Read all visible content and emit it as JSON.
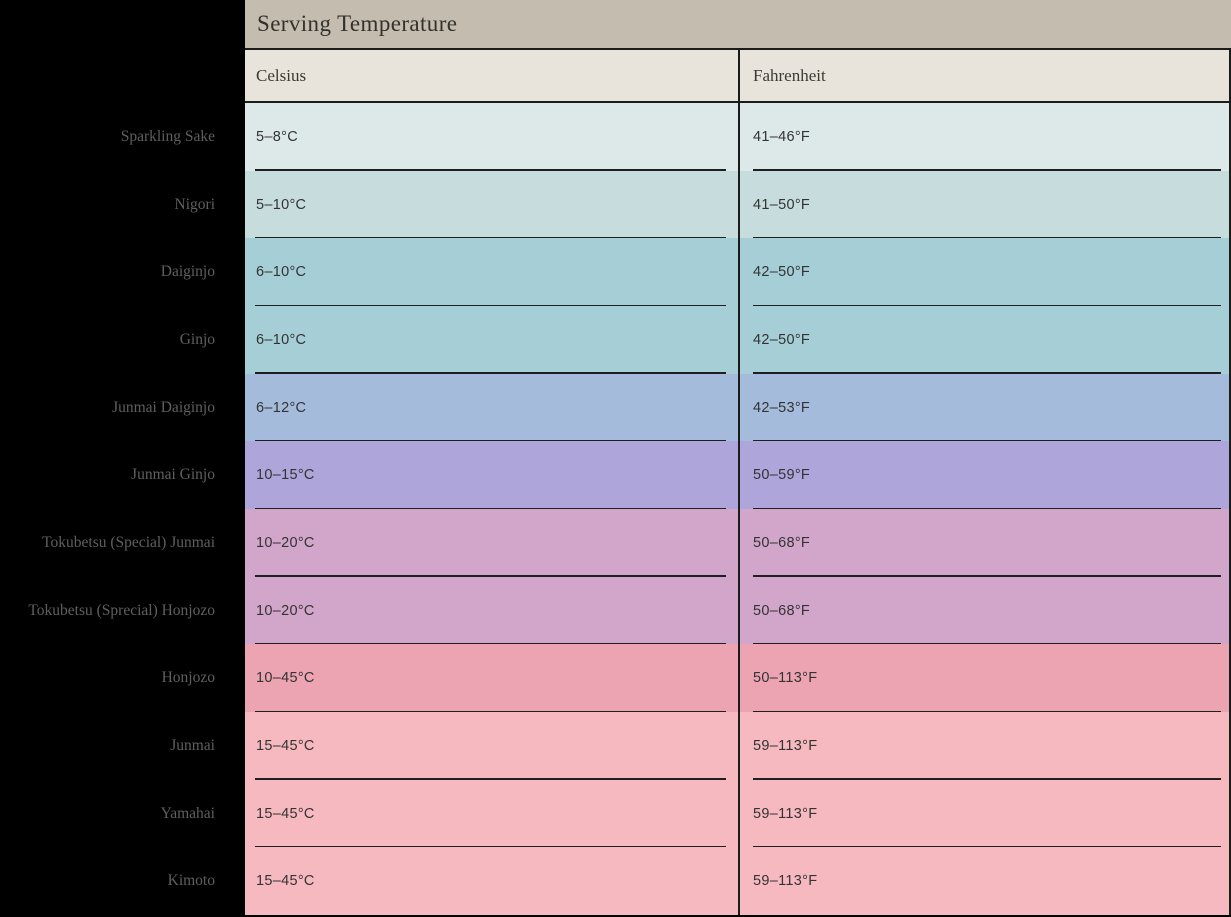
{
  "title": "Serving Temperature",
  "columns": [
    "Celsius",
    "Fahrenheit"
  ],
  "colors": {
    "sidebar_bg": "#000000",
    "title_bar_bg": "#c4bcaf",
    "title_text": "#32312c",
    "header_bg": "#e8e4db",
    "header_text": "#3a3a35",
    "row_label_text": "#5f5f5f",
    "value_text": "#333333",
    "divider_line": "#1b1b1b"
  },
  "rows": [
    {
      "label": "Sparkling Sake",
      "celsius": "5–8°C",
      "fahrenheit": "41–46°F",
      "color": "#dde9e9"
    },
    {
      "label": "Nigori",
      "celsius": "5–10°C",
      "fahrenheit": "41–50°F",
      "color": "#c6dcdd"
    },
    {
      "label": "Daiginjo",
      "celsius": "6–10°C",
      "fahrenheit": "42–50°F",
      "color": "#a5ced6"
    },
    {
      "label": "Ginjo",
      "celsius": "6–10°C",
      "fahrenheit": "42–50°F",
      "color": "#a5ced6"
    },
    {
      "label": "Junmai Daiginjo",
      "celsius": "6–12°C",
      "fahrenheit": "42–53°F",
      "color": "#a4bbdb"
    },
    {
      "label": "Junmai Ginjo",
      "celsius": "10–15°C",
      "fahrenheit": "50–59°F",
      "color": "#aea6da"
    },
    {
      "label": "Tokubetsu (Special) Junmai",
      "celsius": "10–20°C",
      "fahrenheit": "50–68°F",
      "color": "#d1a6ca"
    },
    {
      "label": "Tokubetsu (Sprecial) Honjozo",
      "celsius": "10–20°C",
      "fahrenheit": "50–68°F",
      "color": "#d1a6ca"
    },
    {
      "label": "Honjozo",
      "celsius": "10–45°C",
      "fahrenheit": "50–113°F",
      "color": "#eca3b2"
    },
    {
      "label": "Junmai",
      "celsius": "15–45°C",
      "fahrenheit": "59–113°F",
      "color": "#f7b9c0"
    },
    {
      "label": "Yamahai",
      "celsius": "15–45°C",
      "fahrenheit": "59–113°F",
      "color": "#f7b9c0"
    },
    {
      "label": "Kimoto",
      "celsius": "15–45°C",
      "fahrenheit": "59–113°F",
      "color": "#f7b9c0"
    }
  ],
  "chart_data": {
    "type": "table",
    "title": "Serving Temperature",
    "columns": [
      "Celsius",
      "Fahrenheit"
    ],
    "row_labels": [
      "Sparkling Sake",
      "Nigori",
      "Daiginjo",
      "Ginjo",
      "Junmai Daiginjo",
      "Junmai Ginjo",
      "Tokubetsu (Special) Junmai",
      "Tokubetsu (Sprecial) Honjozo",
      "Honjozo",
      "Junmai",
      "Yamahai",
      "Kimoto"
    ],
    "series": [
      {
        "name": "Celsius range (°C)",
        "values": [
          [
            5,
            8
          ],
          [
            5,
            10
          ],
          [
            6,
            10
          ],
          [
            6,
            10
          ],
          [
            6,
            12
          ],
          [
            10,
            15
          ],
          [
            10,
            20
          ],
          [
            10,
            20
          ],
          [
            10,
            45
          ],
          [
            15,
            45
          ],
          [
            15,
            45
          ],
          [
            15,
            45
          ]
        ]
      },
      {
        "name": "Fahrenheit range (°F)",
        "values": [
          [
            41,
            46
          ],
          [
            41,
            50
          ],
          [
            42,
            50
          ],
          [
            42,
            50
          ],
          [
            42,
            53
          ],
          [
            50,
            59
          ],
          [
            50,
            68
          ],
          [
            50,
            68
          ],
          [
            50,
            113
          ],
          [
            59,
            113
          ],
          [
            59,
            113
          ],
          [
            59,
            113
          ]
        ]
      }
    ],
    "row_colors": [
      "#dde9e9",
      "#c6dcdd",
      "#a5ced6",
      "#a5ced6",
      "#a4bbdb",
      "#aea6da",
      "#d1a6ca",
      "#d1a6ca",
      "#eca3b2",
      "#f7b9c0",
      "#f7b9c0",
      "#f7b9c0"
    ],
    "legend_position": "none",
    "grid": "row-separators"
  }
}
